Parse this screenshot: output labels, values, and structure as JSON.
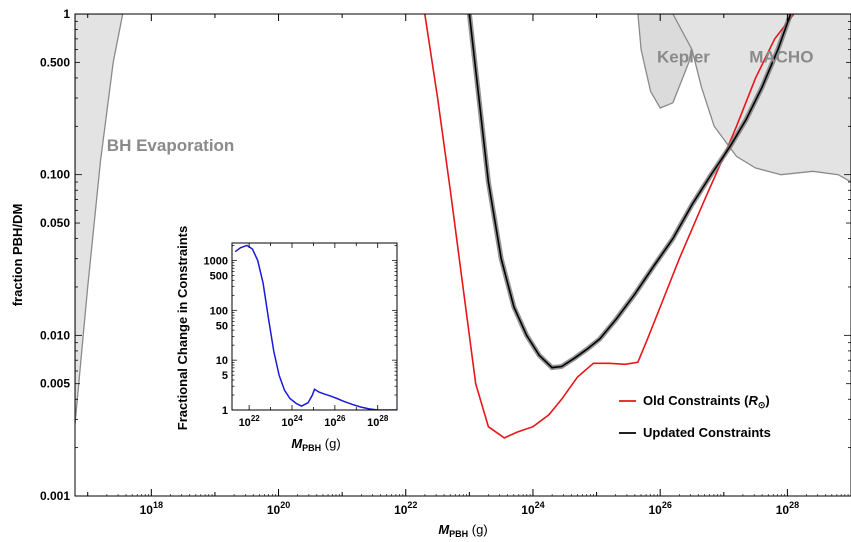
{
  "chart_data": [
    {
      "type": "line",
      "ylabel": "fraction PBH/DM",
      "xlabel": {
        "main": "M",
        "sub": "PBH",
        "unit": " (g)"
      },
      "x_scale": "log10",
      "y_scale": "log10",
      "xlim_log10": [
        16.8,
        29.0
      ],
      "ylim_log10": [
        -3,
        0
      ],
      "x_ticks": [
        {
          "exp": 18,
          "base": "10",
          "sup": "18"
        },
        {
          "exp": 20,
          "base": "10",
          "sup": "20"
        },
        {
          "exp": 22,
          "base": "10",
          "sup": "22"
        },
        {
          "exp": 24,
          "base": "10",
          "sup": "24"
        },
        {
          "exp": 26,
          "base": "10",
          "sup": "26"
        },
        {
          "exp": 28,
          "base": "10",
          "sup": "28"
        }
      ],
      "y_ticks": [
        {
          "value": 1,
          "label": "1"
        },
        {
          "value": 0.5,
          "label": "0.500"
        },
        {
          "value": 0.1,
          "label": "0.100"
        },
        {
          "value": 0.05,
          "label": "0.050"
        },
        {
          "value": 0.01,
          "label": "0.010"
        },
        {
          "value": 0.005,
          "label": "0.005"
        },
        {
          "value": 0.001,
          "label": "0.001"
        }
      ],
      "regions": [
        {
          "name": "BH Evaporation",
          "label_at": [
            17.3,
            0.14
          ],
          "boundary": [
            [
              16.8,
              0.0028
            ],
            [
              17.0,
              0.02
            ],
            [
              17.2,
              0.12
            ],
            [
              17.4,
              0.5
            ],
            [
              17.55,
              1.0
            ]
          ]
        },
        {
          "name": "Kepler",
          "label_at": [
            25.95,
            0.5
          ],
          "boundary": [
            [
              25.65,
              1.0
            ],
            [
              25.7,
              0.6
            ],
            [
              25.85,
              0.33
            ],
            [
              26.0,
              0.26
            ],
            [
              26.2,
              0.28
            ],
            [
              26.45,
              0.5
            ],
            [
              26.6,
              1.0
            ]
          ]
        },
        {
          "name": "MACHO",
          "label_at": [
            27.4,
            0.5
          ],
          "boundary": [
            [
              26.2,
              1.0
            ],
            [
              26.5,
              0.6
            ],
            [
              26.65,
              0.35
            ],
            [
              26.85,
              0.2
            ],
            [
              27.2,
              0.13
            ],
            [
              27.5,
              0.11
            ],
            [
              27.9,
              0.1
            ],
            [
              28.4,
              0.105
            ],
            [
              28.8,
              0.1
            ],
            [
              29.0,
              0.09
            ]
          ]
        }
      ],
      "series": [
        {
          "name": "Old Constraints",
          "color": "#e8161a",
          "points": [
            [
              22.3,
              1.0
            ],
            [
              22.5,
              0.3
            ],
            [
              22.7,
              0.08
            ],
            [
              22.9,
              0.02
            ],
            [
              23.1,
              0.005
            ],
            [
              23.3,
              0.0027
            ],
            [
              23.55,
              0.0023
            ],
            [
              23.75,
              0.0025
            ],
            [
              24.0,
              0.0027
            ],
            [
              24.25,
              0.0032
            ],
            [
              24.45,
              0.004
            ],
            [
              24.7,
              0.0055
            ],
            [
              24.95,
              0.0067
            ],
            [
              25.2,
              0.0067
            ],
            [
              25.45,
              0.0066
            ],
            [
              25.65,
              0.0068
            ],
            [
              25.8,
              0.0095
            ],
            [
              26.0,
              0.015
            ],
            [
              26.3,
              0.03
            ],
            [
              26.7,
              0.07
            ],
            [
              27.0,
              0.13
            ],
            [
              27.2,
              0.2
            ],
            [
              27.5,
              0.4
            ],
            [
              27.8,
              0.7
            ],
            [
              28.1,
              1.0
            ]
          ]
        },
        {
          "name": "Updated Constraints",
          "color": "#000000",
          "points": [
            [
              23.0,
              1.0
            ],
            [
              23.15,
              0.3
            ],
            [
              23.3,
              0.09
            ],
            [
              23.5,
              0.03
            ],
            [
              23.7,
              0.015
            ],
            [
              23.9,
              0.01
            ],
            [
              24.1,
              0.0075
            ],
            [
              24.3,
              0.0063
            ],
            [
              24.45,
              0.0064
            ],
            [
              24.65,
              0.0072
            ],
            [
              24.85,
              0.0082
            ],
            [
              25.05,
              0.0095
            ],
            [
              25.3,
              0.0125
            ],
            [
              25.6,
              0.018
            ],
            [
              25.9,
              0.027
            ],
            [
              26.2,
              0.04
            ],
            [
              26.5,
              0.065
            ],
            [
              26.8,
              0.1
            ],
            [
              27.1,
              0.15
            ],
            [
              27.35,
              0.22
            ],
            [
              27.6,
              0.35
            ],
            [
              27.85,
              0.6
            ],
            [
              28.05,
              1.0
            ]
          ]
        }
      ],
      "legend": [
        {
          "label": "Old Constraints",
          "label_math": "R",
          "label_sub": "⊙",
          "color": "#e8161a"
        },
        {
          "label": "Updated Constraints",
          "color": "#000000"
        }
      ],
      "legend_position": "bottom-right"
    },
    {
      "type": "line",
      "ylabel": "Fractional Change in Constraints",
      "xlabel": {
        "main": "M",
        "sub": "PBH",
        "unit": " (g)"
      },
      "x_scale": "log10",
      "y_scale": "log10",
      "xlim_log10": [
        21.2,
        28.9
      ],
      "ylim_log10": [
        0,
        3.35
      ],
      "x_ticks": [
        {
          "exp": 22,
          "base": "10",
          "sup": "22"
        },
        {
          "exp": 24,
          "base": "10",
          "sup": "24"
        },
        {
          "exp": 26,
          "base": "10",
          "sup": "26"
        },
        {
          "exp": 28,
          "base": "10",
          "sup": "28"
        }
      ],
      "y_ticks": [
        {
          "value": 1,
          "label": "1"
        },
        {
          "value": 5,
          "label": "5"
        },
        {
          "value": 10,
          "label": "10"
        },
        {
          "value": 50,
          "label": "50"
        },
        {
          "value": 100,
          "label": "100"
        },
        {
          "value": 500,
          "label": "500"
        },
        {
          "value": 1000,
          "label": "1000"
        }
      ],
      "series": [
        {
          "name": "",
          "color": "#1a1adb",
          "points": [
            [
              21.35,
              1500
            ],
            [
              21.6,
              1800
            ],
            [
              21.9,
              2000
            ],
            [
              22.15,
              1700
            ],
            [
              22.4,
              1000
            ],
            [
              22.65,
              350
            ],
            [
              22.9,
              70
            ],
            [
              23.15,
              15
            ],
            [
              23.4,
              5
            ],
            [
              23.65,
              2.5
            ],
            [
              23.9,
              1.7
            ],
            [
              24.2,
              1.35
            ],
            [
              24.45,
              1.2
            ],
            [
              24.75,
              1.4
            ],
            [
              24.95,
              2.0
            ],
            [
              25.05,
              2.6
            ],
            [
              25.25,
              2.3
            ],
            [
              25.5,
              2.1
            ],
            [
              25.8,
              1.9
            ],
            [
              26.1,
              1.7
            ],
            [
              26.4,
              1.5
            ],
            [
              26.8,
              1.3
            ],
            [
              27.2,
              1.15
            ],
            [
              27.6,
              1.05
            ],
            [
              28.0,
              1.0
            ],
            [
              28.5,
              1.0
            ],
            [
              28.9,
              1.0
            ]
          ]
        }
      ]
    }
  ]
}
